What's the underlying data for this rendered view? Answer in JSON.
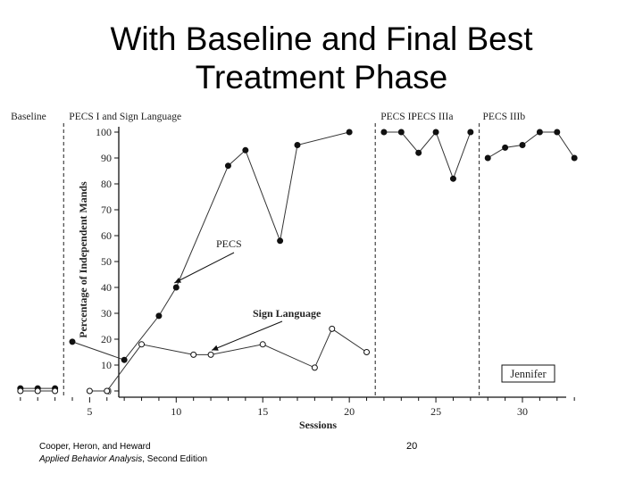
{
  "slide": {
    "title_line1": "With Baseline and Final Best",
    "title_line2": "Treatment Phase",
    "citation_authors": "Cooper, Heron, and Heward",
    "citation_book": "Applied Behavior Analysis",
    "citation_edition": ", Second Edition",
    "page_number": "20"
  },
  "chart_data": {
    "type": "line",
    "xlabel": "Sessions",
    "ylabel": "Percentage of Independent Mands",
    "xlim": [
      0,
      33.3
    ],
    "ylim": [
      0,
      100
    ],
    "x_ticks": [
      5,
      10,
      15,
      20,
      25,
      30
    ],
    "y_ticks": [
      0,
      10,
      20,
      30,
      40,
      50,
      60,
      70,
      80,
      90,
      100
    ],
    "grid": false,
    "participant_label": "Jennifer",
    "phases": [
      {
        "label": "Baseline",
        "start": 0.5
      },
      {
        "label": "PECS I and Sign Language",
        "start": 3.5
      },
      {
        "label": "PECS II",
        "start": 21.5
      },
      {
        "label": "PECS IIIa",
        "start": 23.5
      },
      {
        "label": "PECS IIIb",
        "start": 27.5
      }
    ],
    "phase_lines": [
      3.5,
      21.5,
      27.5
    ],
    "series": [
      {
        "name": "PECS",
        "marker": "filled",
        "segments": [
          [
            [
              1,
              1
            ],
            [
              2,
              1
            ],
            [
              3,
              1
            ]
          ],
          [
            [
              4,
              19
            ],
            [
              7,
              12
            ],
            [
              9,
              29
            ],
            [
              10,
              40
            ],
            [
              13,
              87
            ],
            [
              14,
              93
            ],
            [
              16,
              58
            ],
            [
              17,
              95
            ],
            [
              20,
              100
            ]
          ],
          [
            [
              22,
              100
            ],
            [
              23,
              100
            ],
            [
              24,
              92
            ],
            [
              25,
              100
            ],
            [
              26,
              82
            ],
            [
              27,
              100
            ]
          ],
          [
            [
              28,
              90
            ],
            [
              29,
              94
            ],
            [
              30,
              95
            ],
            [
              31,
              100
            ],
            [
              32,
              100
            ],
            [
              33,
              90
            ]
          ]
        ]
      },
      {
        "name": "Sign Language",
        "marker": "open",
        "segments": [
          [
            [
              1,
              0
            ],
            [
              2,
              0
            ],
            [
              3,
              0
            ]
          ],
          [
            [
              5,
              0
            ],
            [
              6,
              0
            ],
            [
              8,
              18
            ],
            [
              11,
              14
            ],
            [
              12,
              14
            ],
            [
              15,
              18
            ],
            [
              18,
              9
            ],
            [
              19,
              24
            ],
            [
              21,
              15
            ]
          ]
        ]
      }
    ],
    "annotations": [
      {
        "text": "PECS",
        "points_to": [
          10,
          40
        ]
      },
      {
        "text": "Sign Language",
        "points_to": [
          12,
          14
        ]
      }
    ]
  }
}
